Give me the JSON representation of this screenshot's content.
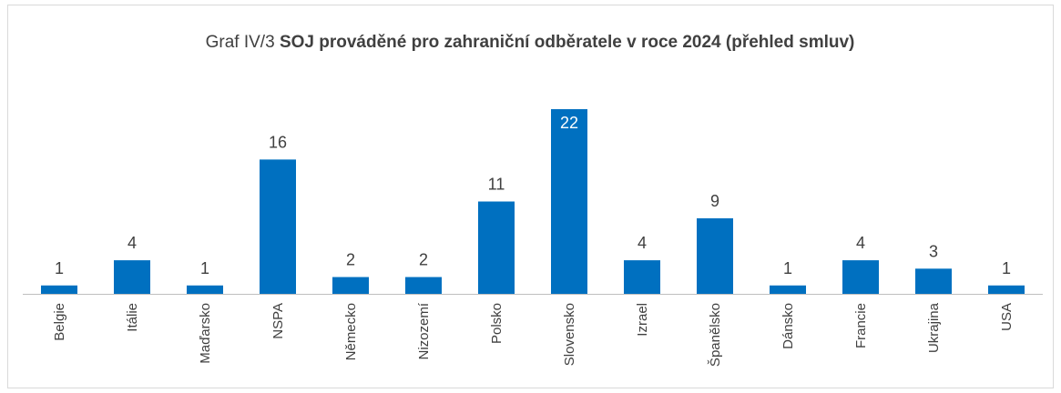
{
  "chart_data": {
    "type": "bar",
    "title_label": "Graf IV/3",
    "title": "SOJ prováděné pro zahraniční odběratele v roce 2024 (přehled smluv)",
    "categories": [
      "Belgie",
      "Itálie",
      "Maďarsko",
      "NSPA",
      "Německo",
      "Nizozemí",
      "Polsko",
      "Slovensko",
      "Izrael",
      "Španělsko",
      "Dánsko",
      "Francie",
      "Ukrajina",
      "USA"
    ],
    "values": [
      1,
      4,
      1,
      16,
      2,
      2,
      11,
      22,
      4,
      9,
      1,
      4,
      3,
      1
    ],
    "color": "#0070c0"
  }
}
